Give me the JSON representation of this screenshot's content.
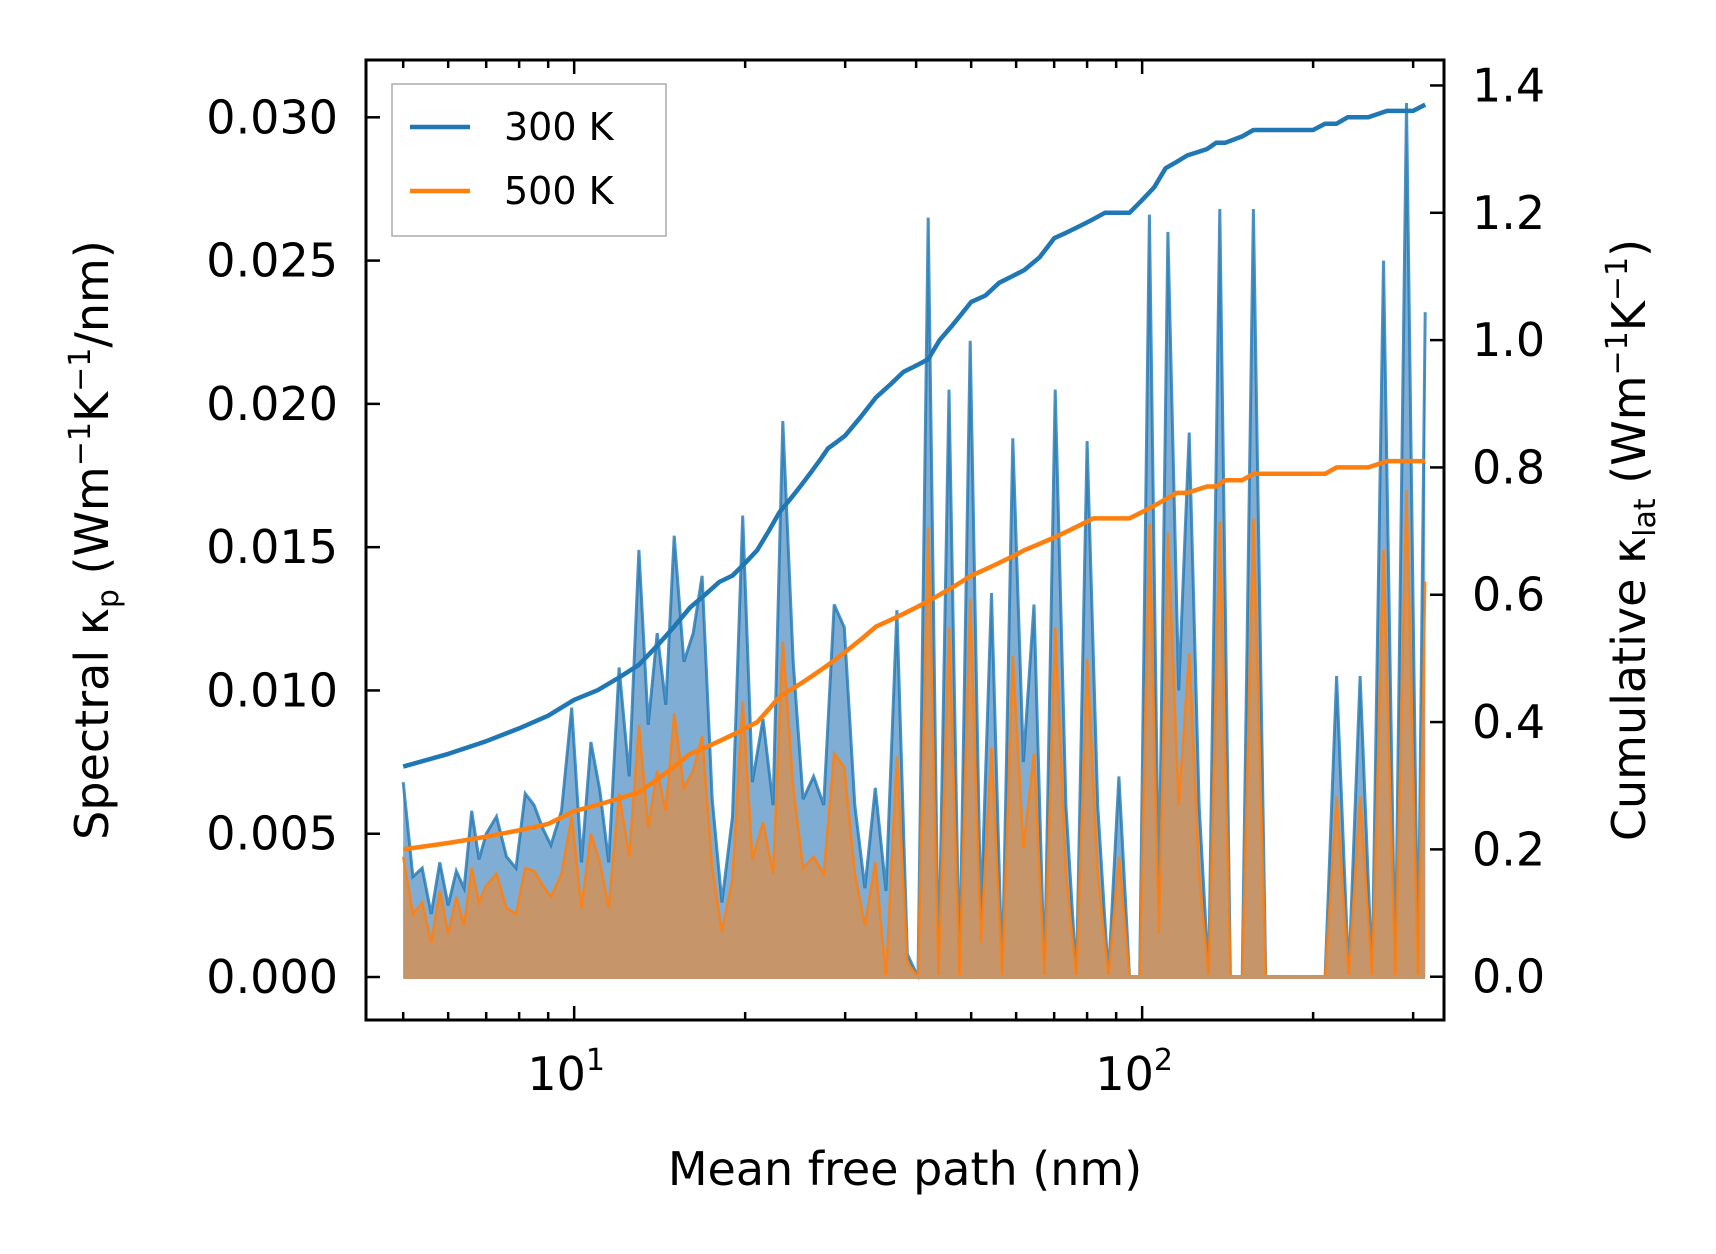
{
  "chart_data": {
    "type": "line",
    "xscale": "log",
    "xlabel": "Mean free path (nm)",
    "ylabel_left": {
      "main": "Spectral κ",
      "sub": "p",
      "units_pre": " (Wm",
      "sup1": "−1",
      "mid": "K",
      "sup2": "−1",
      "tail": "/nm)"
    },
    "ylabel_right": {
      "main": "Cumulative κ",
      "sub": "lat",
      "units_pre": " (Wm",
      "sup1": "−1",
      "mid": "K",
      "sup2": "−1",
      "tail": ")"
    },
    "xlim": [
      4.3,
      340
    ],
    "ylim_left": [
      -0.0015,
      0.032
    ],
    "ylim_right": [
      -0.068,
      1.44
    ],
    "x_ticks": [
      {
        "value": 10,
        "base": "10",
        "exp": "1"
      },
      {
        "value": 100,
        "base": "10",
        "exp": "2"
      }
    ],
    "y_left_ticks": [
      "0.000",
      "0.005",
      "0.010",
      "0.015",
      "0.020",
      "0.025",
      "0.030"
    ],
    "y_left_tick_values": [
      0,
      0.005,
      0.01,
      0.015,
      0.02,
      0.025,
      0.03
    ],
    "y_right_ticks": [
      "0.0",
      "0.2",
      "0.4",
      "0.6",
      "0.8",
      "1.0",
      "1.2",
      "1.4"
    ],
    "y_right_tick_values": [
      0,
      0.2,
      0.4,
      0.6,
      0.8,
      1.0,
      1.2,
      1.4
    ],
    "legend": {
      "position": "top-left",
      "entries": [
        "300 K",
        "500 K"
      ]
    },
    "colors": {
      "300K": "#1f77b4",
      "500K": "#ff7f0e",
      "fill300": "#6a9fcb",
      "fill500": "#c7956a"
    },
    "spectral": {
      "x": [
        5.0,
        5.2,
        5.4,
        5.6,
        5.8,
        6.0,
        6.2,
        6.4,
        6.6,
        6.8,
        7.0,
        7.3,
        7.6,
        7.9,
        8.2,
        8.5,
        8.8,
        9.1,
        9.5,
        9.9,
        10.3,
        10.7,
        11.1,
        11.5,
        12.0,
        12.5,
        13.0,
        13.5,
        14.0,
        14.5,
        15.0,
        15.6,
        16.2,
        16.8,
        17.5,
        18.2,
        19.0,
        19.8,
        20.6,
        21.5,
        22.4,
        23.3,
        24.3,
        25.3,
        26.4,
        27.5,
        28.7,
        29.9,
        31.2,
        32.5,
        33.9,
        35.4,
        37.0,
        38.6,
        40.3,
        42.0,
        43.8,
        45.7,
        47.7,
        49.8,
        52.0,
        54.3,
        56.7,
        59.2,
        61.8,
        64.5,
        67.3,
        70.3,
        73.4,
        76.6,
        80.0,
        83.5,
        87.2,
        91.0,
        95.0,
        99.0,
        103.0,
        107.0,
        111.0,
        116.0,
        121.0,
        126.0,
        131.0,
        137.0,
        143.0,
        150.0,
        157.0,
        165.0,
        173.0,
        182.0,
        191.0,
        200.0,
        210.0,
        220.0,
        231.0,
        242.0,
        254.0,
        266.0,
        279.0,
        292.0,
        306.0,
        315.0
      ],
      "values_300K": [
        0.0068,
        0.0035,
        0.0038,
        0.0022,
        0.004,
        0.0025,
        0.0037,
        0.0031,
        0.0058,
        0.0041,
        0.005,
        0.0056,
        0.0042,
        0.0038,
        0.0064,
        0.006,
        0.0052,
        0.0046,
        0.0058,
        0.0094,
        0.004,
        0.0082,
        0.0065,
        0.004,
        0.0108,
        0.007,
        0.0149,
        0.0088,
        0.012,
        0.0095,
        0.0154,
        0.011,
        0.012,
        0.014,
        0.0062,
        0.0026,
        0.0056,
        0.0161,
        0.0068,
        0.009,
        0.006,
        0.0194,
        0.011,
        0.0062,
        0.007,
        0.006,
        0.013,
        0.0122,
        0.006,
        0.0031,
        0.0066,
        0.003,
        0.0128,
        0.0008,
        0.0,
        0.0265,
        0.0,
        0.0205,
        0.0,
        0.0222,
        0.002,
        0.0134,
        0.0,
        0.0188,
        0.0075,
        0.013,
        0.0,
        0.0205,
        0.006,
        0.0,
        0.0187,
        0.006,
        0.0,
        0.007,
        0.0,
        0.0,
        0.0266,
        0.0025,
        0.026,
        0.01,
        0.019,
        0.006,
        0.0,
        0.0268,
        0.0,
        0.0,
        0.0268,
        0.0,
        0.0,
        0.0,
        0.0,
        0.0,
        0.0,
        0.0105,
        0.0,
        0.0105,
        0.0,
        0.025,
        0.0,
        0.0305,
        0.0,
        0.0232
      ],
      "values_500K": [
        0.0042,
        0.0022,
        0.0026,
        0.0012,
        0.003,
        0.0015,
        0.0028,
        0.0018,
        0.0038,
        0.0026,
        0.0032,
        0.0036,
        0.0024,
        0.0022,
        0.0038,
        0.0037,
        0.0032,
        0.0028,
        0.0036,
        0.0056,
        0.0024,
        0.005,
        0.004,
        0.0024,
        0.0064,
        0.0042,
        0.0088,
        0.0052,
        0.0072,
        0.0058,
        0.0092,
        0.0066,
        0.0072,
        0.0084,
        0.0038,
        0.0016,
        0.0034,
        0.0096,
        0.0041,
        0.0054,
        0.0036,
        0.0117,
        0.0066,
        0.0038,
        0.0042,
        0.0036,
        0.0078,
        0.0073,
        0.0036,
        0.0018,
        0.004,
        0.0,
        0.0077,
        0.0005,
        0.0,
        0.0157,
        0.0,
        0.0122,
        0.0,
        0.0132,
        0.0012,
        0.008,
        0.0,
        0.0112,
        0.0045,
        0.0078,
        0.0,
        0.0122,
        0.0036,
        0.0,
        0.0111,
        0.0036,
        0.0,
        0.0042,
        0.0,
        0.0,
        0.0158,
        0.0015,
        0.0155,
        0.006,
        0.0113,
        0.0036,
        0.0,
        0.0159,
        0.0,
        0.0,
        0.016,
        0.0,
        0.0,
        0.0,
        0.0,
        0.0,
        0.0,
        0.0063,
        0.0,
        0.0063,
        0.0,
        0.0149,
        0.0,
        0.017,
        0.0,
        0.0138
      ]
    },
    "cumulative": {
      "x": [
        5.0,
        6.0,
        7.0,
        8.0,
        9.0,
        10.0,
        11.0,
        12.0,
        13.0,
        14.0,
        15.0,
        16.0,
        17.0,
        18.0,
        19.0,
        20.0,
        21.0,
        22.0,
        23.0,
        24.0,
        25.0,
        26.0,
        27.0,
        28.0,
        29.0,
        30.0,
        32.0,
        34.0,
        36.0,
        38.0,
        40.0,
        42.0,
        44.0,
        46.0,
        48.0,
        50.0,
        53.0,
        56.0,
        59.0,
        62.0,
        66.0,
        70.0,
        74.0,
        78.0,
        82.0,
        86.0,
        90.0,
        95.0,
        100.0,
        105.0,
        110.0,
        115.0,
        120.0,
        130.0,
        135.0,
        140.0,
        150.0,
        157.0,
        160.0,
        170.0,
        180.0,
        200.0,
        210.0,
        220.0,
        230.0,
        240.0,
        250.0,
        270.0,
        280.0,
        300.0,
        315.0
      ],
      "values_300K": [
        0.33,
        0.35,
        0.37,
        0.39,
        0.41,
        0.435,
        0.45,
        0.47,
        0.49,
        0.52,
        0.55,
        0.58,
        0.6,
        0.62,
        0.63,
        0.65,
        0.67,
        0.7,
        0.73,
        0.75,
        0.77,
        0.79,
        0.81,
        0.83,
        0.84,
        0.85,
        0.88,
        0.91,
        0.93,
        0.95,
        0.96,
        0.97,
        1.0,
        1.02,
        1.04,
        1.06,
        1.07,
        1.09,
        1.1,
        1.11,
        1.13,
        1.16,
        1.17,
        1.18,
        1.19,
        1.2,
        1.2,
        1.2,
        1.22,
        1.24,
        1.27,
        1.28,
        1.29,
        1.3,
        1.31,
        1.31,
        1.32,
        1.33,
        1.33,
        1.33,
        1.33,
        1.33,
        1.34,
        1.34,
        1.35,
        1.35,
        1.35,
        1.36,
        1.36,
        1.36,
        1.37
      ],
      "values_500K": [
        0.2,
        0.21,
        0.22,
        0.23,
        0.24,
        0.26,
        0.27,
        0.28,
        0.29,
        0.31,
        0.33,
        0.35,
        0.36,
        0.37,
        0.38,
        0.39,
        0.4,
        0.42,
        0.44,
        0.45,
        0.46,
        0.47,
        0.48,
        0.49,
        0.5,
        0.51,
        0.53,
        0.55,
        0.56,
        0.57,
        0.58,
        0.59,
        0.6,
        0.61,
        0.62,
        0.63,
        0.64,
        0.65,
        0.66,
        0.67,
        0.68,
        0.69,
        0.7,
        0.71,
        0.72,
        0.72,
        0.72,
        0.72,
        0.73,
        0.74,
        0.75,
        0.76,
        0.76,
        0.77,
        0.77,
        0.78,
        0.78,
        0.79,
        0.79,
        0.79,
        0.79,
        0.79,
        0.79,
        0.8,
        0.8,
        0.8,
        0.8,
        0.81,
        0.81,
        0.81,
        0.81
      ]
    }
  }
}
